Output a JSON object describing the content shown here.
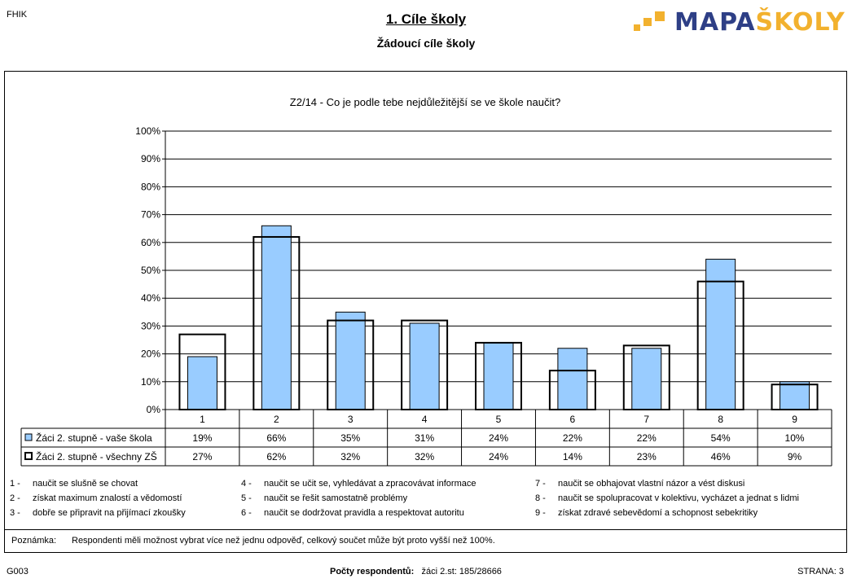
{
  "header": {
    "code": "FHIK",
    "title": "1. Cíle školy",
    "subtitle": "Žádoucí cíle školy",
    "logo_part1": "MAPA",
    "logo_part2": "ŠKOLY",
    "logo_colors": {
      "dark": "#2e3f86",
      "accent": "#f2b12e"
    }
  },
  "chart_data": {
    "type": "bar",
    "title": "Z2/14 - Co je podle tebe nejdůležitější se ve škole naučit?",
    "categories": [
      "1",
      "2",
      "3",
      "4",
      "5",
      "6",
      "7",
      "8",
      "9"
    ],
    "y_ticks": [
      "0%",
      "10%",
      "20%",
      "30%",
      "40%",
      "50%",
      "60%",
      "70%",
      "80%",
      "90%",
      "100%"
    ],
    "ylim": [
      0,
      100
    ],
    "grid": true,
    "series": [
      {
        "name": "Žáci 2. stupně - vaše škola",
        "values": [
          19,
          66,
          35,
          31,
          24,
          22,
          22,
          54,
          10
        ],
        "labels": [
          "19%",
          "66%",
          "35%",
          "31%",
          "24%",
          "22%",
          "22%",
          "54%",
          "10%"
        ],
        "color": "#99ccff"
      },
      {
        "name": "Žáci 2. stupně - všechny ZŠ",
        "values": [
          27,
          62,
          32,
          32,
          24,
          14,
          23,
          46,
          9
        ],
        "labels": [
          "27%",
          "62%",
          "32%",
          "32%",
          "24%",
          "14%",
          "23%",
          "46%",
          "9%"
        ],
        "color": "#ffffff"
      }
    ]
  },
  "legend_items": [
    {
      "num": "1",
      "text": "naučit se slušně se chovat"
    },
    {
      "num": "2",
      "text": "získat maximum znalostí a vědomostí"
    },
    {
      "num": "3",
      "text": "dobře se připravit na přijímací zkoušky"
    },
    {
      "num": "4",
      "text": "naučit se učit se, vyhledávat a zpracovávat informace"
    },
    {
      "num": "5",
      "text": "naučit se řešit samostatně problémy"
    },
    {
      "num": "6",
      "text": "naučit se dodržovat pravidla a respektovat autoritu"
    },
    {
      "num": "7",
      "text": "naučit se obhajovat vlastní názor a vést diskusi"
    },
    {
      "num": "8",
      "text": "naučit se spolupracovat v kolektivu, vycházet a jednat s lidmi"
    },
    {
      "num": "9",
      "text": "získat zdravé sebevědomí a schopnost sebekritiky"
    }
  ],
  "note": {
    "label": "Poznámka:",
    "text": "Respondenti měli možnost vybrat více než jednu odpověď, celkový součet může být proto vyšší než 100%."
  },
  "footer": {
    "code": "G003",
    "respondents_label": "Počty respondentů:",
    "respondents_value": "žáci 2.st: 185/28666",
    "page": "STRANA: 3"
  }
}
